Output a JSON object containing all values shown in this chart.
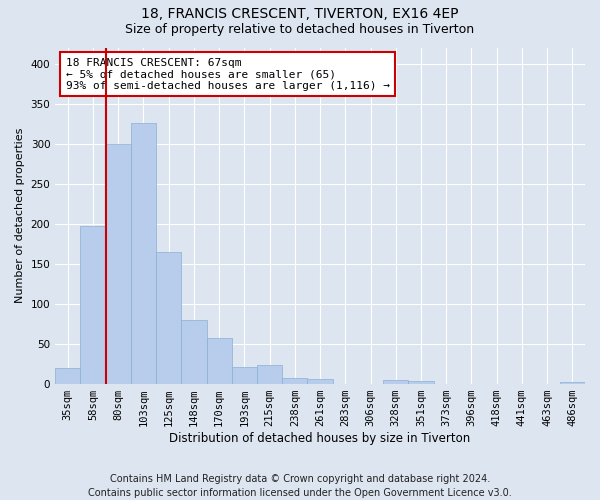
{
  "title1": "18, FRANCIS CRESCENT, TIVERTON, EX16 4EP",
  "title2": "Size of property relative to detached houses in Tiverton",
  "xlabel": "Distribution of detached houses by size in Tiverton",
  "ylabel": "Number of detached properties",
  "footnote": "Contains HM Land Registry data © Crown copyright and database right 2024.\nContains public sector information licensed under the Open Government Licence v3.0.",
  "categories": [
    "35sqm",
    "58sqm",
    "80sqm",
    "103sqm",
    "125sqm",
    "148sqm",
    "170sqm",
    "193sqm",
    "215sqm",
    "238sqm",
    "261sqm",
    "283sqm",
    "306sqm",
    "328sqm",
    "351sqm",
    "373sqm",
    "396sqm",
    "418sqm",
    "441sqm",
    "463sqm",
    "486sqm"
  ],
  "values": [
    20,
    197,
    299,
    326,
    165,
    80,
    57,
    21,
    24,
    7,
    6,
    0,
    0,
    5,
    4,
    0,
    0,
    0,
    0,
    0,
    3
  ],
  "bar_color": "#b8cceb",
  "bar_edgecolor": "#8aafd4",
  "vline_x": 1.5,
  "vline_color": "#cc0000",
  "annotation_text": "18 FRANCIS CRESCENT: 67sqm\n← 5% of detached houses are smaller (65)\n93% of semi-detached houses are larger (1,116) →",
  "annotation_box_facecolor": "#ffffff",
  "annotation_box_edgecolor": "#cc0000",
  "ylim": [
    0,
    420
  ],
  "yticks": [
    0,
    50,
    100,
    150,
    200,
    250,
    300,
    350,
    400
  ],
  "bg_color": "#dde5f0",
  "plot_bg_color": "#dde5f0",
  "grid_color": "#ffffff",
  "title1_fontsize": 10,
  "title2_fontsize": 9,
  "xlabel_fontsize": 8.5,
  "ylabel_fontsize": 8,
  "footnote_fontsize": 7,
  "tick_fontsize": 7.5,
  "annot_fontsize": 8
}
